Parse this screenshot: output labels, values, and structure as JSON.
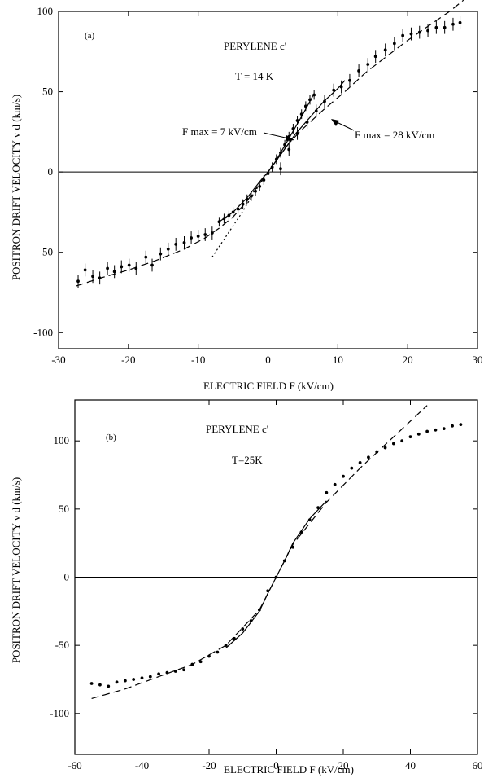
{
  "chart_data": [
    {
      "type": "scatter",
      "panel_label": "(a)",
      "annotation_title": "PERYLENE c'",
      "annotation_temp": "T = 14 K",
      "annotation_fmax7": "F max = 7 kV/cm",
      "annotation_fmax28": "F max = 28 kV/cm",
      "xlabel": "ELECTRIC FIELD F (kV/cm)",
      "ylabel": "POSITRON DRIFT VELOCITY v d (km/s)",
      "xlim": [
        -30,
        30
      ],
      "ylim": [
        -110,
        100
      ],
      "xticks": [
        -30,
        -20,
        -10,
        0,
        10,
        20,
        30
      ],
      "yticks": [
        -100,
        -50,
        0,
        50,
        100
      ],
      "series": [
        {
          "style": "points-with-errorbars",
          "x": [
            -27.2,
            -26.2,
            -25.1,
            -24.1,
            -23.0,
            -22.0,
            -21.0,
            -19.9,
            -18.9,
            -17.5,
            -16.6,
            -15.4,
            -14.3,
            -13.2,
            -12.0,
            -11.0,
            -10.0,
            -9.0,
            -8.0
          ],
          "y": [
            -68,
            -61,
            -65,
            -66,
            -60,
            -62,
            -59,
            -58,
            -60,
            -53,
            -58,
            -51,
            -48,
            -45,
            -44,
            -41,
            -40,
            -39,
            -38
          ],
          "err": [
            4,
            4,
            4,
            4,
            4,
            4,
            4,
            4,
            4,
            4,
            4,
            4,
            4,
            4,
            4,
            4,
            4,
            4,
            4
          ]
        },
        {
          "style": "points-with-errorbars",
          "x": [
            -7.0,
            -6.3,
            -5.6,
            -5.0,
            -4.3,
            -3.6,
            -3.0,
            -2.4,
            -1.8,
            -1.2,
            -0.6,
            0.0,
            0.6,
            1.2,
            1.8,
            2.4,
            3.0,
            3.6,
            4.2,
            4.8,
            5.4,
            6.0,
            6.6
          ],
          "y": [
            -31,
            -29,
            -27,
            -25,
            -23,
            -20,
            -17,
            -15,
            -12,
            -9,
            -5,
            -1,
            3,
            8,
            12,
            17,
            22,
            27,
            32,
            36,
            41,
            45,
            48
          ],
          "err": [
            3,
            3,
            3,
            3,
            3,
            3,
            3,
            3,
            3,
            3,
            3,
            3,
            3,
            3,
            3,
            3,
            3,
            3,
            3,
            3,
            3,
            3,
            3
          ]
        },
        {
          "style": "points-with-errorbars",
          "x": [
            1.8,
            3.0,
            4.2,
            5.6,
            6.9,
            8.1,
            9.4,
            10.5,
            11.7,
            13.0,
            14.3,
            15.4,
            16.8,
            18.1,
            19.3,
            20.5,
            21.7,
            22.9,
            24.1,
            25.3,
            26.5,
            27.5
          ],
          "y": [
            2,
            14,
            24,
            31,
            38,
            44,
            51,
            53,
            57,
            63,
            67,
            72,
            76,
            80,
            85,
            86,
            87,
            88,
            90,
            90,
            92,
            93
          ],
          "err": [
            4,
            4,
            4,
            4,
            4,
            4,
            4,
            4,
            4,
            4,
            4,
            4,
            4,
            4,
            4,
            4,
            4,
            4,
            4,
            4,
            4,
            4
          ]
        },
        {
          "style": "dashed",
          "x": [
            -27.5,
            -24,
            -20,
            -16,
            -12,
            -9,
            -7,
            -5,
            -3,
            -1,
            0,
            1,
            3,
            5,
            8,
            11,
            14,
            17,
            20,
            23,
            26,
            28
          ],
          "y": [
            -71,
            -66,
            -61,
            -55,
            -48,
            -41,
            -35,
            -28,
            -18,
            -6,
            0,
            6,
            18,
            27,
            39,
            50,
            62,
            72,
            82,
            91,
            100,
            107
          ]
        },
        {
          "style": "solid",
          "x": [
            -7,
            -5,
            -3,
            -1,
            0,
            1,
            3,
            5,
            6.5
          ],
          "y": [
            -31,
            -25,
            -16,
            -5,
            0,
            6,
            21,
            36,
            48
          ]
        },
        {
          "style": "dotted",
          "x": [
            -8,
            -6,
            -4,
            -2,
            0
          ],
          "y": [
            -53,
            -40,
            -27,
            -13,
            0
          ]
        },
        {
          "style": "solid",
          "x": [
            0,
            2,
            4,
            6,
            8,
            10,
            11
          ],
          "y": [
            0,
            12,
            24,
            34,
            44,
            52,
            57
          ]
        }
      ]
    },
    {
      "type": "scatter",
      "panel_label": "(b)",
      "annotation_title": "PERYLENE c'",
      "annotation_temp": "T=25K",
      "xlabel": "ELECTRIC FIELD F (kV/cm)",
      "ylabel": "POSITRON DRIFT VELOCITY v d (km/s)",
      "xlim": [
        -60,
        60
      ],
      "ylim": [
        -130,
        130
      ],
      "xticks": [
        -60,
        -40,
        -20,
        0,
        20,
        40,
        60
      ],
      "yticks": [
        -100,
        -50,
        0,
        50,
        100
      ],
      "series": [
        {
          "style": "points",
          "x": [
            -55,
            -52.5,
            -50,
            -47.5,
            -45,
            -42.5,
            -40,
            -37.5,
            -35,
            -32.5,
            -30,
            -27.5,
            -25,
            -22.5,
            -20,
            -17.5,
            -15,
            -12.5,
            -10,
            -7.5,
            -5,
            -2.5,
            0,
            2.5,
            5,
            7.5,
            10,
            12.5,
            15,
            17.5,
            20,
            22.5,
            25,
            27.5,
            30,
            32.5,
            35,
            37.5,
            40,
            42.5,
            45,
            47.5,
            50,
            52.5,
            55
          ],
          "y": [
            -78,
            -79,
            -80,
            -77,
            -76,
            -75,
            -74,
            -73,
            -71,
            -70,
            -69,
            -68,
            -64,
            -62,
            -58,
            -55,
            -50,
            -45,
            -38,
            -32,
            -24,
            -10,
            0,
            12,
            22,
            33,
            42,
            51,
            62,
            68,
            74,
            80,
            84,
            88,
            92,
            95,
            98,
            100,
            103,
            105,
            107,
            108,
            109,
            111,
            112
          ]
        },
        {
          "style": "dashed",
          "x": [
            -55,
            -45,
            -35,
            -25,
            -15,
            -5,
            0,
            5,
            15,
            25,
            35,
            45
          ],
          "y": [
            -89,
            -82,
            -73,
            -64,
            -50,
            -24,
            0,
            24,
            55,
            80,
            103,
            126
          ]
        },
        {
          "style": "solid",
          "x": [
            -15,
            -10,
            -5,
            -2.5,
            0,
            2.5,
            5,
            10,
            15
          ],
          "y": [
            -52,
            -41,
            -25,
            -12,
            0,
            12,
            25,
            43,
            56
          ]
        }
      ]
    }
  ]
}
